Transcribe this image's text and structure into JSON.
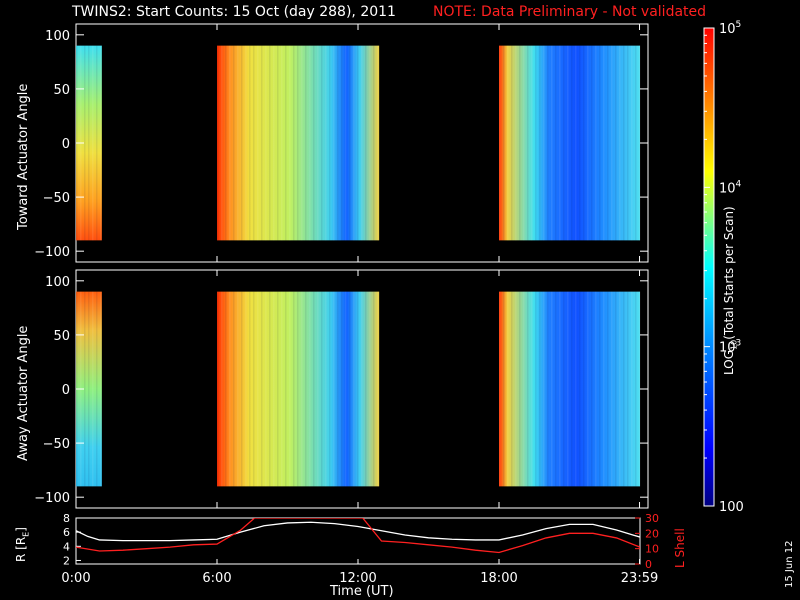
{
  "title": {
    "main": "TWINS2: Start Counts: 15 Oct (day 288), 2011",
    "note": "NOTE: Data Preliminary - Not validated"
  },
  "side_date": "15 Jun 12",
  "colors": {
    "background": "#000000",
    "axes": "#ffffff",
    "note": "#ff2020",
    "r_line": "#ffffff",
    "lshell_line": "#ff2020"
  },
  "chart_data": [
    {
      "type": "heatmap",
      "panel": "toward",
      "ylabel": "Toward Actuator Angle",
      "ylim": [
        -110,
        110
      ],
      "yticks": [
        "100",
        "50",
        "0",
        "−50",
        "−100"
      ],
      "x_unit": "hours UT",
      "data_coverage_hours": [
        [
          0.0,
          1.1
        ],
        [
          6.0,
          12.9
        ],
        [
          18.0,
          24.0
        ]
      ],
      "angle_coverage": [
        -90,
        90
      ]
    },
    {
      "type": "heatmap",
      "panel": "away",
      "ylabel": "Away Actuator Angle",
      "ylim": [
        -110,
        110
      ],
      "yticks": [
        "100",
        "50",
        "0",
        "−50",
        "−100"
      ],
      "x_unit": "hours UT",
      "data_coverage_hours": [
        [
          0.0,
          1.1
        ],
        [
          6.0,
          12.9
        ],
        [
          18.0,
          24.0
        ]
      ],
      "angle_coverage": [
        -90,
        90
      ]
    },
    {
      "type": "line",
      "panel": "orbit",
      "ylabel_left": "R [R",
      "ylabel_left_sub": "E",
      "ylabel_left_end": "]",
      "ylabel_right": "L Shell",
      "xlabel": "Time (UT)",
      "xticks": [
        "0:00",
        "6:00",
        "12:00",
        "18:00",
        "23:59"
      ],
      "xtick_hours": [
        0,
        6,
        12,
        18,
        23.98
      ],
      "left_ylim": [
        1.5,
        8
      ],
      "left_yticks": [
        "8",
        "6",
        "4",
        "2"
      ],
      "right_ylim": [
        0,
        30
      ],
      "right_yticks": [
        "30",
        "20",
        "10",
        "0"
      ],
      "series": [
        {
          "name": "R",
          "axis": "left",
          "x": [
            0,
            0.5,
            1,
            2,
            3,
            4,
            5,
            6,
            7,
            8,
            9,
            10,
            11,
            12,
            13,
            14,
            15,
            16,
            17,
            18,
            19,
            20,
            21,
            22,
            23,
            24
          ],
          "y": [
            6.2,
            5.4,
            4.9,
            4.8,
            4.8,
            4.8,
            4.9,
            5.0,
            6.0,
            6.9,
            7.3,
            7.4,
            7.2,
            6.8,
            6.2,
            5.6,
            5.2,
            5.0,
            4.9,
            4.9,
            5.6,
            6.5,
            7.1,
            7.1,
            6.3,
            5.3
          ]
        },
        {
          "name": "L Shell",
          "axis": "right",
          "x": [
            0,
            1,
            2,
            3,
            4,
            5,
            6,
            7,
            7.6,
            12.2,
            13,
            14,
            15,
            16,
            17,
            18,
            19,
            20,
            21,
            22,
            23,
            24
          ],
          "y": [
            11,
            8.5,
            9,
            10,
            11,
            12.5,
            13,
            22,
            30,
            30,
            15,
            14,
            12.5,
            11,
            9,
            7.5,
            12,
            17,
            20,
            20,
            17,
            11
          ]
        }
      ]
    }
  ],
  "colorbar": {
    "label_parts": [
      "LOG",
      "10",
      "(Total Starts per Scan)"
    ],
    "ticks": [
      "10^5",
      "10^4",
      "10^3",
      "100"
    ],
    "range": [
      100,
      100000
    ],
    "scale": "log",
    "colors": [
      "#000080",
      "#0000ff",
      "#0080ff",
      "#00ffff",
      "#ffff00",
      "#ff8000",
      "#ff0000"
    ]
  }
}
